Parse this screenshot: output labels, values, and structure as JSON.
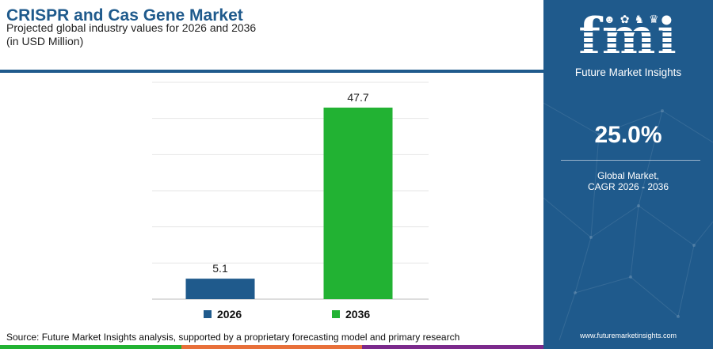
{
  "header": {
    "title": "CRISPR and Cas Gene Market",
    "subtitle": "Projected global industry values for 2026 and 2036",
    "unit": "(in USD Million)"
  },
  "chart_data": {
    "type": "bar",
    "categories": [
      "2026",
      "2036"
    ],
    "values": [
      5.1,
      47.7
    ],
    "value_labels": [
      "5.1",
      "47.7"
    ],
    "colors": [
      "#1f5a8c",
      "#22b233"
    ],
    "ylim": [
      0,
      54
    ],
    "grid": true,
    "legend": "bottom-center",
    "xlabel": "",
    "ylabel": ""
  },
  "legend": {
    "items": [
      {
        "label": "2026",
        "color": "#1f5a8c"
      },
      {
        "label": "2036",
        "color": "#22b233"
      }
    ]
  },
  "source": "Source: Future Market Insights analysis, supported by a proprietary forecasting model and primary research",
  "footer_colors": [
    "#22b233",
    "#e8703a",
    "#7b2a8c"
  ],
  "sidebar": {
    "logo_text": "fmi",
    "logo_subtitle": "Future Market Insights",
    "cagr_value": "25.0%",
    "cagr_label_line1": "Global Market,",
    "cagr_label_line2": "CAGR 2026 - 2036",
    "website": "www.futuremarketinsights.com"
  },
  "colors": {
    "brand_blue": "#1f5a8c",
    "accent_green": "#22b233"
  }
}
